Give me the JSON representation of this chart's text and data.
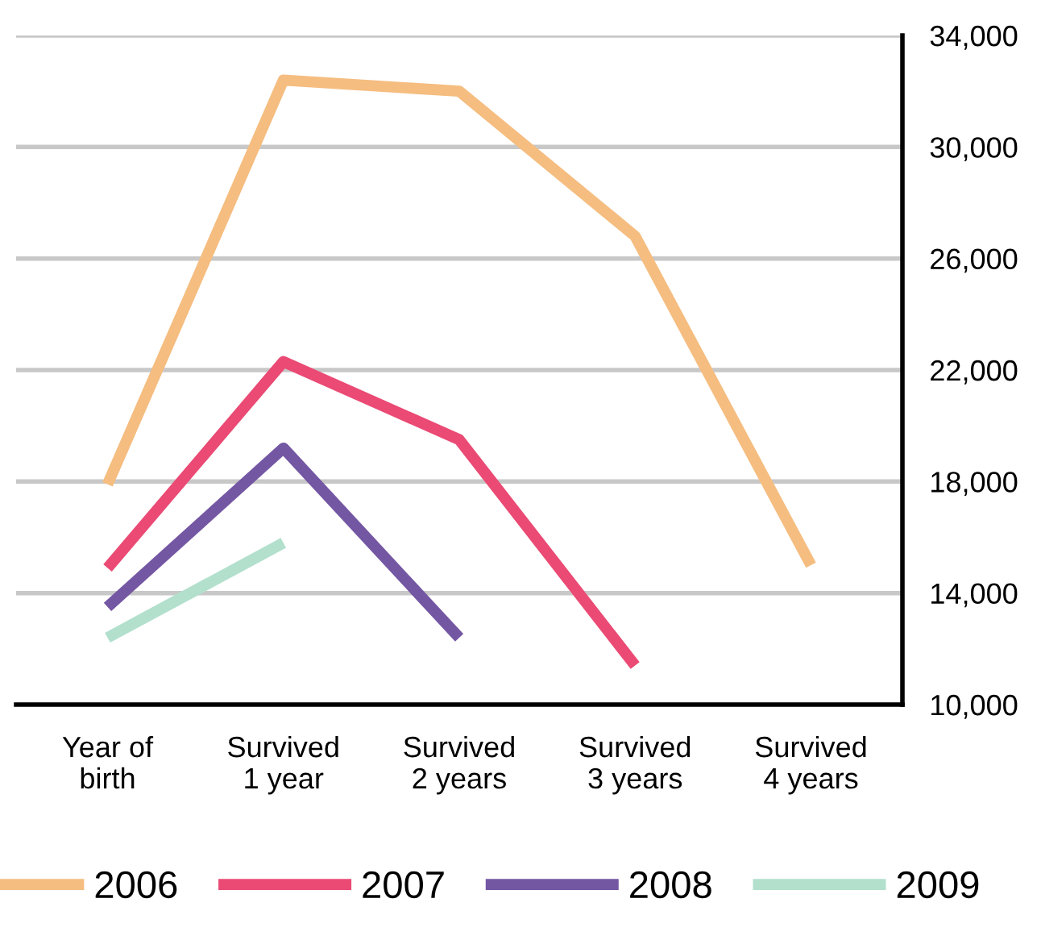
{
  "chart_data": {
    "type": "line",
    "categories": [
      "Year of\nbirth",
      "Survived\n1 year",
      "Survived\n2 years",
      "Survived\n3 years",
      "Survived\n4 years"
    ],
    "series": [
      {
        "name": "2006",
        "color": "#f5bd80",
        "values": [
          17900,
          32400,
          32000,
          26800,
          15000
        ]
      },
      {
        "name": "2007",
        "color": "#ea4a74",
        "values": [
          14900,
          22300,
          19500,
          11400,
          null
        ]
      },
      {
        "name": "2008",
        "color": "#7457a3",
        "values": [
          13500,
          19200,
          12400,
          null,
          null
        ]
      },
      {
        "name": "2009",
        "color": "#b2e0cd",
        "values": [
          12400,
          15800,
          null,
          null,
          null
        ]
      }
    ],
    "ylim": [
      10000,
      34000
    ],
    "yticks": [
      {
        "value": 10000,
        "label": "10,000"
      },
      {
        "value": 14000,
        "label": "14,000"
      },
      {
        "value": 18000,
        "label": "18,000"
      },
      {
        "value": 22000,
        "label": "22,000"
      },
      {
        "value": 26000,
        "label": "26,000"
      },
      {
        "value": 30000,
        "label": "30,000"
      },
      {
        "value": 34000,
        "label": "34,000"
      }
    ],
    "grid": "y",
    "legend": "bottom",
    "marker": "none",
    "line_style": "solid"
  }
}
